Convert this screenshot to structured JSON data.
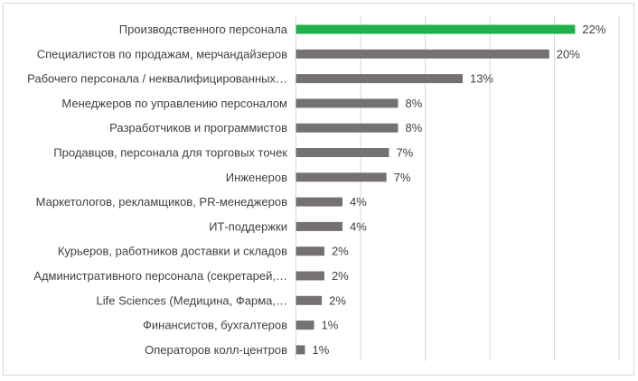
{
  "chart_data": {
    "type": "bar",
    "orientation": "horizontal",
    "categories": [
      "Производственного персонала",
      "Специалистов по продажам, мерчандайзеров",
      "Рабочего персонала / неквалифицированных…",
      "Менеджеров по управлению персоналом",
      "Разработчиков и программистов",
      "Продавцов, персонала для торговых точек",
      "Инженеров",
      "Маркетологов, рекламщиков, PR-менеджеров",
      "ИТ-поддержки",
      "Курьеров, работников доставки и складов",
      "Административного персонала (секретарей,…",
      "Life Sciences (Медицина, Фарма,…",
      "Финансистов, бухгалтеров",
      "Операторов колл-центров"
    ],
    "values": [
      21.6,
      19.6,
      12.9,
      7.9,
      7.9,
      7.2,
      7.0,
      3.6,
      3.6,
      2.2,
      2.2,
      2.0,
      1.4,
      0.7
    ],
    "data_labels": [
      "22%",
      "20%",
      "13%",
      "8%",
      "8%",
      "7%",
      "7%",
      "4%",
      "4%",
      "2%",
      "2%",
      "2%",
      "1%",
      "1%"
    ],
    "xlim": [
      0,
      25
    ],
    "grid": true,
    "gridline_step": 5,
    "highlight_color": "#1fb24a",
    "bar_color": "#767171",
    "title": "",
    "xlabel": "",
    "ylabel": ""
  }
}
